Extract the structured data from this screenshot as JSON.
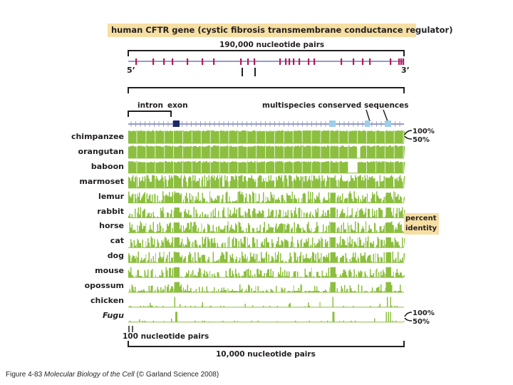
{
  "figure": {
    "title": "human CFTR gene (cystic fibrosis transmembrane conductance regulator)",
    "gene_length_label": "190,000 nucleotide pairs",
    "five_prime": "5’",
    "three_prime": "3’",
    "intron_label": "intron",
    "exon_label": "exon",
    "conserved_label": "multispecies conserved sequences",
    "top_scale": {
      "high": "100%",
      "low": "50%"
    },
    "bottom_scale": {
      "high": "100%",
      "low": "50%"
    },
    "percent_identity_line1": "percent",
    "percent_identity_line2": "identity",
    "small_scale_label": "100 nucleotide pairs",
    "region_length_label": "10,000 nucleotide pairs",
    "species": [
      {
        "name": "chimpanzee",
        "italic": false,
        "mean_identity": 0.99
      },
      {
        "name": "orangutan",
        "italic": false,
        "mean_identity": 0.97
      },
      {
        "name": "baboon",
        "italic": false,
        "mean_identity": 0.94
      },
      {
        "name": "marmoset",
        "italic": false,
        "mean_identity": 0.88
      },
      {
        "name": "lemur",
        "italic": false,
        "mean_identity": 0.72
      },
      {
        "name": "rabbit",
        "italic": false,
        "mean_identity": 0.65
      },
      {
        "name": "horse",
        "italic": false,
        "mean_identity": 0.7
      },
      {
        "name": "cat",
        "italic": false,
        "mean_identity": 0.68
      },
      {
        "name": "dog",
        "italic": false,
        "mean_identity": 0.68
      },
      {
        "name": "mouse",
        "italic": false,
        "mean_identity": 0.6
      },
      {
        "name": "opossum",
        "italic": false,
        "mean_identity": 0.45
      },
      {
        "name": "chicken",
        "italic": false,
        "mean_identity": 0.25
      },
      {
        "name": "Fugu",
        "italic": true,
        "mean_identity": 0.12
      }
    ],
    "colors": {
      "identity_fill": "#8cbf3f",
      "exon_marker": "#b5195f",
      "exon_box": "#1c2a6b",
      "conserved_marker": "#9ccfee",
      "label_box": "#f6dfa3",
      "bracket": "#231f20"
    }
  },
  "caption": {
    "prefix": "Figure 4-83",
    "book": "Molecular Biology of the Cell",
    "suffix": "(© Garland Science 2008)"
  }
}
